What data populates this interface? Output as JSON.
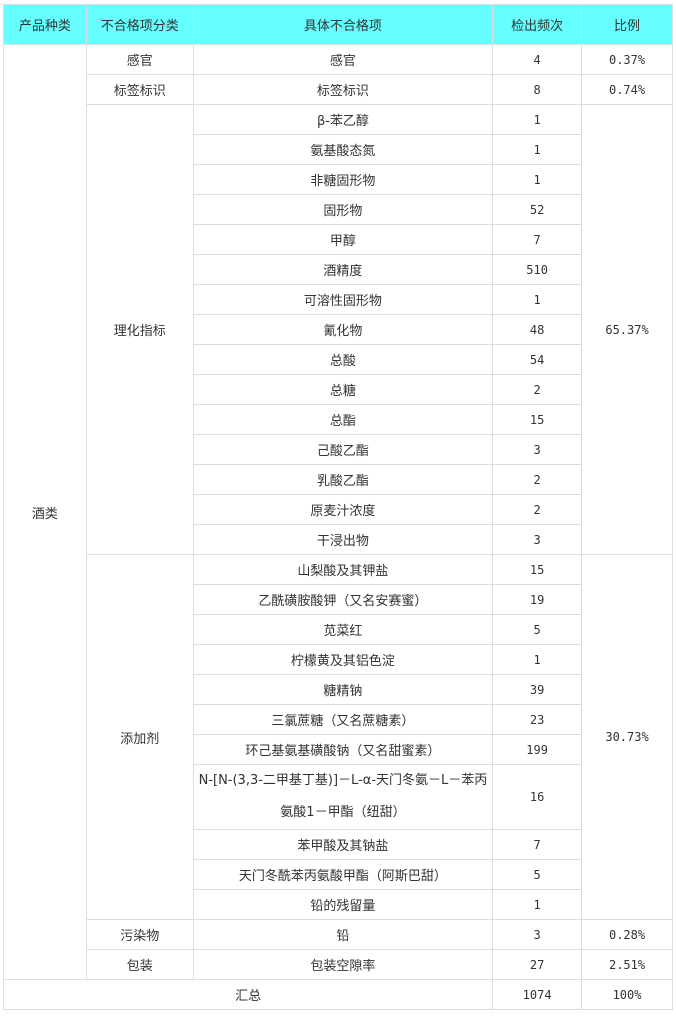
{
  "headers": [
    "产品种类",
    "不合格项分类",
    "具体不合格项",
    "检出频次",
    "比例"
  ],
  "product_type": "酒类",
  "groups": [
    {
      "category": "感官",
      "ratio": "0.37%",
      "items": [
        {
          "name": "感官",
          "count": "4"
        }
      ]
    },
    {
      "category": "标签标识",
      "ratio": "0.74%",
      "items": [
        {
          "name": "标签标识",
          "count": "8"
        }
      ]
    },
    {
      "category": "理化指标",
      "ratio": "65.37%",
      "items": [
        {
          "name": "β-苯乙醇",
          "count": "1"
        },
        {
          "name": "氨基酸态氮",
          "count": "1"
        },
        {
          "name": "非糖固形物",
          "count": "1"
        },
        {
          "name": "固形物",
          "count": "52"
        },
        {
          "name": "甲醇",
          "count": "7"
        },
        {
          "name": "酒精度",
          "count": "510"
        },
        {
          "name": "可溶性固形物",
          "count": "1"
        },
        {
          "name": "氰化物",
          "count": "48"
        },
        {
          "name": "总酸",
          "count": "54"
        },
        {
          "name": "总糖",
          "count": "2"
        },
        {
          "name": "总酯",
          "count": "15"
        },
        {
          "name": "己酸乙酯",
          "count": "3"
        },
        {
          "name": "乳酸乙酯",
          "count": "2"
        },
        {
          "name": "原麦汁浓度",
          "count": "2"
        },
        {
          "name": "干浸出物",
          "count": "3"
        }
      ]
    },
    {
      "category": "添加剂",
      "ratio": "30.73%",
      "items": [
        {
          "name": "山梨酸及其钾盐",
          "count": "15"
        },
        {
          "name": "乙酰磺胺酸钾（又名安赛蜜）",
          "count": "19"
        },
        {
          "name": "苋菜红",
          "count": "5"
        },
        {
          "name": "柠檬黄及其铝色淀",
          "count": "1"
        },
        {
          "name": "糖精钠",
          "count": "39"
        },
        {
          "name": "三氯蔗糖（又名蔗糖素）",
          "count": "23"
        },
        {
          "name": "环己基氨基磺酸钠（又名甜蜜素）",
          "count": "199"
        },
        {
          "name": "N-[N-(3,3-二甲基丁基)]－L-α-天门冬氨－L－苯丙氨酸1－甲酯（纽甜）",
          "count": "16",
          "tall": true
        },
        {
          "name": "苯甲酸及其钠盐",
          "count": "7"
        },
        {
          "name": "天门冬酰苯丙氨酸甲酯（阿斯巴甜）",
          "count": "5"
        },
        {
          "name": "铅的残留量",
          "count": "1"
        }
      ]
    },
    {
      "category": "污染物",
      "ratio": "0.28%",
      "items": [
        {
          "name": "铅",
          "count": "3"
        }
      ]
    },
    {
      "category": "包装",
      "ratio": "2.51%",
      "items": [
        {
          "name": "包装空隙率",
          "count": "27"
        }
      ]
    }
  ],
  "total": {
    "label": "汇总",
    "count": "1074",
    "ratio": "100%"
  }
}
